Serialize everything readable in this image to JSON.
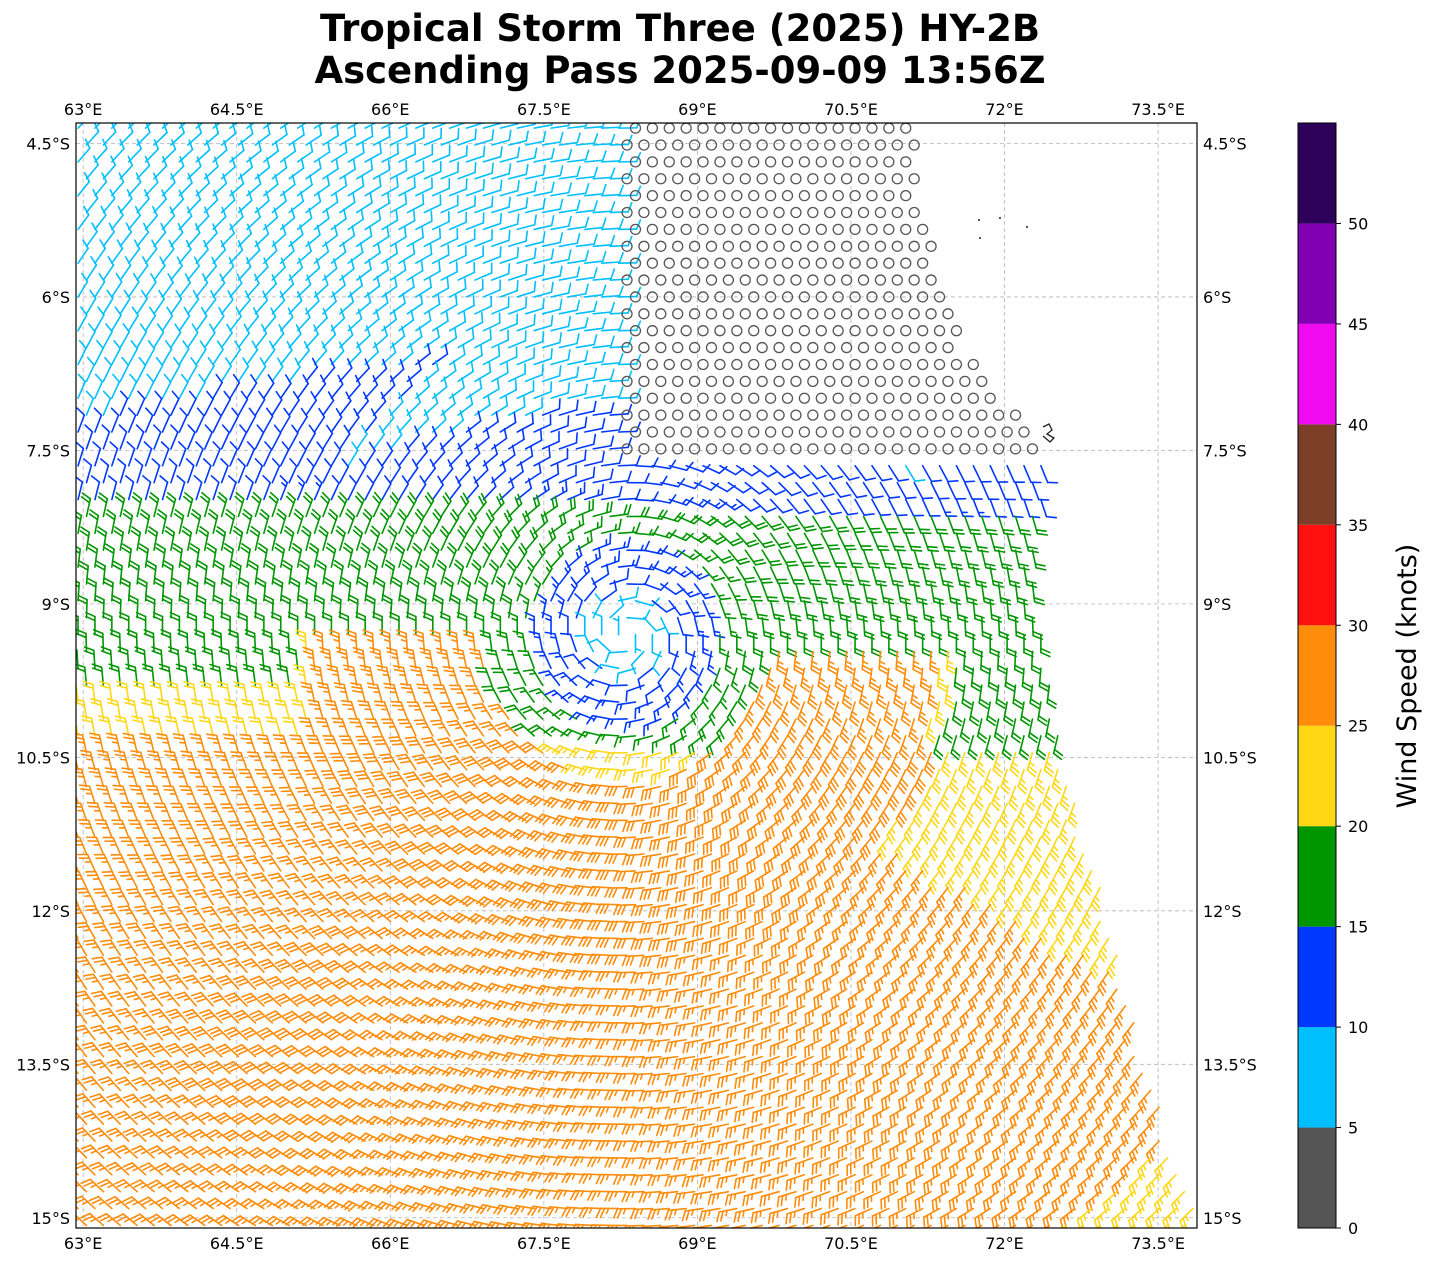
{
  "title": {
    "line1": "Tropical Storm Three (2025) HY-2B",
    "line2": "Ascending Pass 2025-09-09 13:56Z"
  },
  "map": {
    "lon_range": [
      62.93,
      73.88
    ],
    "lat_range": [
      -15.1,
      -4.3
    ],
    "lon_ticks": [
      {
        "value": 63.0,
        "label": "63°E"
      },
      {
        "value": 64.5,
        "label": "64.5°E"
      },
      {
        "value": 66.0,
        "label": "66°E"
      },
      {
        "value": 67.5,
        "label": "67.5°E"
      },
      {
        "value": 69.0,
        "label": "69°E"
      },
      {
        "value": 70.5,
        "label": "70.5°E"
      },
      {
        "value": 72.0,
        "label": "72°E"
      },
      {
        "value": 73.5,
        "label": "73.5°E"
      }
    ],
    "lat_ticks": [
      {
        "value": -4.5,
        "label": "4.5°S"
      },
      {
        "value": -6.0,
        "label": "6°S"
      },
      {
        "value": -7.5,
        "label": "7.5°S"
      },
      {
        "value": -9.0,
        "label": "9°S"
      },
      {
        "value": -10.5,
        "label": "10.5°S"
      },
      {
        "value": -12.0,
        "label": "12°S"
      },
      {
        "value": -13.5,
        "label": "13.5°S"
      },
      {
        "value": -15.0,
        "label": "15°S"
      }
    ],
    "gridlines": true,
    "storm_center": {
      "lon": 68.3,
      "lat": -9.3
    }
  },
  "colorbar": {
    "label": "Wind Speed (knots)",
    "bins": [
      {
        "from": 0,
        "to": 5,
        "color": "#555555"
      },
      {
        "from": 5,
        "to": 10,
        "color": "#00BFFF"
      },
      {
        "from": 10,
        "to": 15,
        "color": "#0038FF"
      },
      {
        "from": 15,
        "to": 20,
        "color": "#009600"
      },
      {
        "from": 20,
        "to": 25,
        "color": "#FFD714"
      },
      {
        "from": 25,
        "to": 30,
        "color": "#FF8C0A"
      },
      {
        "from": 30,
        "to": 35,
        "color": "#FF1010"
      },
      {
        "from": 35,
        "to": 40,
        "color": "#7D3E28"
      },
      {
        "from": 40,
        "to": 45,
        "color": "#F00AF0"
      },
      {
        "from": 45,
        "to": 50,
        "color": "#8200B4"
      },
      {
        "from": 50,
        "to": 55,
        "color": "#2D005A"
      }
    ],
    "tick_labels": [
      "0",
      "5",
      "10",
      "15",
      "20",
      "25",
      "30",
      "35",
      "40",
      "45",
      "50"
    ]
  },
  "chart_data": {
    "type": "wind-barb-map",
    "title": "Tropical Storm Three (2025) HY-2B Ascending Pass 2025-09-09 13:56Z",
    "xlabel": "",
    "ylabel": "",
    "xlim": [
      62.93,
      73.88
    ],
    "ylim": [
      -15.1,
      -4.3
    ],
    "units": "knots",
    "grid": true,
    "storm_center": {
      "lon": 68.3,
      "lat": -9.3
    },
    "swath_right_edge": [
      [
        -5.2,
        71.2
      ],
      [
        -6.5,
        71.6
      ],
      [
        -7.5,
        72.4
      ],
      [
        -9.0,
        72.3
      ],
      [
        -10.5,
        72.6
      ],
      [
        -12.0,
        73.0
      ],
      [
        -13.5,
        73.4
      ],
      [
        -15.1,
        73.9
      ]
    ],
    "wind_field": "cyclonic circulation around storm center; max winds 25-30 kt south and southwest of center; calm (<5 kt) region north-northeast of center"
  }
}
